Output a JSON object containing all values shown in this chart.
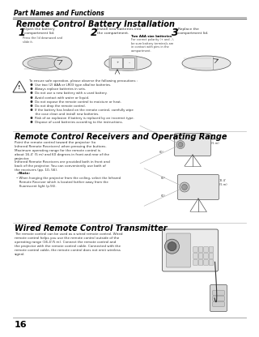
{
  "page_number": "16",
  "header_text": "Part Names and Functions",
  "section1_title": "Remote Control Battery Installation",
  "step1_num": "1",
  "step1_text": "Open the battery\ncompartment lid.",
  "step2_num": "2",
  "step2_text": "Install new batteries into\nthe compartment.",
  "step3_num": "3",
  "step3_text": "Replace the\ncompartment lid.",
  "step1_sub": "Press the lid downward and\nslide it.",
  "step2_bold": "Two AAA size batteries",
  "step2_sub": "For correct polarity (+ and –),\nbe sure battery terminals are\nin contact with pins in the\ncompartment.",
  "warning_text": "To ensure safe operation, please observe the following precautions :\n ●  Use two (2) AAA or LR03 type alkaline batteries.\n ●  Always replace batteries in sets.\n ●  Do not use a new battery with a used battery.\n ●  Avoid contact with water or liquid.\n ●  Do not expose the remote control to moisture or heat.\n ●  Do not drop the remote control.\n ●  If the battery has leaked on the remote control, carefully wipe\n      the case clean and install new batteries.\n ●  Risk of an explosion if battery is replaced by an incorrect type.\n ●  Dispose of used batteries according to the instructions.",
  "section2_title": "Remote Control Receivers and Operating Range",
  "section2_body": "Point the remote control toward the projector (to\nInfrared Remote Receivers) when pressing the buttons.\nMaximum operating range for the remote control is\nabout 16.4’ (5 m) and 60 degrees in front and rear of the\nprojector.",
  "section2_body2": "Infrared Remote Receivers are provided both in front and\nback of the projector. You can conveniently use both of\nthe receivers (pp. 10, 56).",
  "note_label": "Note:",
  "note_body": "• When hanging the projector from the ceiling, select the Infrared\n   Remote Receiver which is located farther away from the\n   fluorescent light (p.56).",
  "section3_title": "Wired Remote Control Transmitter",
  "section3_body": "The remote control can be used as a wired remote control. Wired\nremote control helps you use the remote control outside of the\noperating range (16.4’/5 m). Connect the remote control and\nthe projector with the remote control cable. Connected with the\nremote control cable, the remote control does not emit wireless\nsignal.",
  "dist_label1": "16.4’\n(5 m)",
  "dist_label2": "16.4’\n(5 m)",
  "angle_label": "60°",
  "bg_color": "#ffffff"
}
